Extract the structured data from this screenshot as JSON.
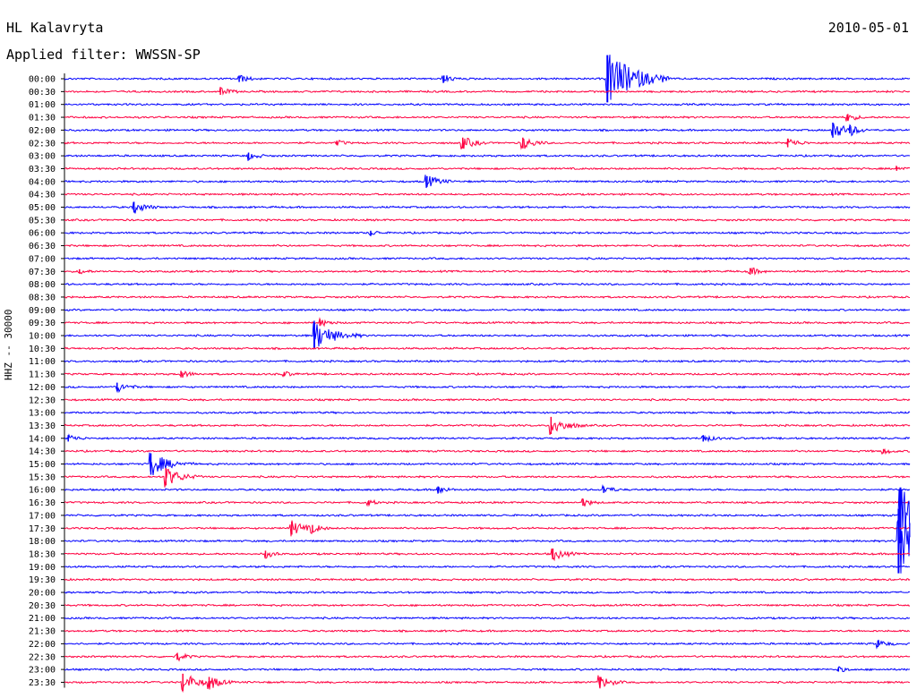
{
  "header": {
    "station": "HL Kalavryta",
    "date": "2010-05-01",
    "filter": "Applied filter: WWSSN-SP",
    "channel": "HHZ -- 30000"
  },
  "colors": {
    "blue": "#0000ff",
    "red": "#ff0040"
  },
  "chart_data": {
    "type": "line",
    "title": "HL Kalavryta",
    "subtitle": "Applied filter: WWSSN-SP",
    "ylabel": "HHZ -- 30000",
    "x_range_minutes": [
      0,
      30
    ],
    "traces": [
      {
        "label": "00:00",
        "color": "blue",
        "events": [
          [
            9.3,
            0.3
          ],
          [
            20.2,
            0.3
          ],
          [
            28.9,
            2.2
          ]
        ]
      },
      {
        "label": "00:30",
        "color": "red",
        "events": [
          [
            8.3,
            0.3
          ]
        ]
      },
      {
        "label": "01:00",
        "color": "blue",
        "events": []
      },
      {
        "label": "01:30",
        "color": "red",
        "events": [
          [
            41.7,
            0.3
          ]
        ]
      },
      {
        "label": "02:00",
        "color": "blue",
        "events": [
          [
            40.9,
            0.7
          ],
          [
            41.8,
            0.3
          ]
        ]
      },
      {
        "label": "02:30",
        "color": "red",
        "events": [
          [
            14.5,
            0.2
          ],
          [
            21.2,
            0.5
          ],
          [
            24.4,
            0.5
          ],
          [
            38.5,
            0.4
          ]
        ]
      },
      {
        "label": "03:00",
        "color": "blue",
        "events": [
          [
            9.8,
            0.3
          ]
        ]
      },
      {
        "label": "03:30",
        "color": "red",
        "events": [
          [
            44.3,
            0.2
          ]
        ]
      },
      {
        "label": "04:00",
        "color": "blue",
        "events": [
          [
            19.3,
            0.5
          ]
        ]
      },
      {
        "label": "04:30",
        "color": "red",
        "events": []
      },
      {
        "label": "05:00",
        "color": "blue",
        "events": [
          [
            3.7,
            0.5
          ]
        ]
      },
      {
        "label": "05:30",
        "color": "red",
        "events": []
      },
      {
        "label": "06:00",
        "color": "blue",
        "events": [
          [
            16.3,
            0.2
          ]
        ]
      },
      {
        "label": "06:30",
        "color": "red",
        "events": []
      },
      {
        "label": "07:00",
        "color": "blue",
        "events": []
      },
      {
        "label": "07:30",
        "color": "red",
        "events": [
          [
            0.8,
            0.2
          ],
          [
            36.5,
            0.3
          ]
        ]
      },
      {
        "label": "08:00",
        "color": "blue",
        "events": []
      },
      {
        "label": "08:30",
        "color": "red",
        "events": []
      },
      {
        "label": "09:00",
        "color": "blue",
        "events": []
      },
      {
        "label": "09:30",
        "color": "red",
        "events": [
          [
            13.6,
            0.3
          ]
        ]
      },
      {
        "label": "10:00",
        "color": "blue",
        "events": [
          [
            13.3,
            1.2
          ]
        ]
      },
      {
        "label": "10:30",
        "color": "red",
        "events": []
      },
      {
        "label": "11:00",
        "color": "blue",
        "events": []
      },
      {
        "label": "11:30",
        "color": "red",
        "events": [
          [
            6.2,
            0.3
          ],
          [
            11.7,
            0.2
          ]
        ]
      },
      {
        "label": "12:00",
        "color": "blue",
        "events": [
          [
            2.8,
            0.4
          ]
        ]
      },
      {
        "label": "12:30",
        "color": "red",
        "events": []
      },
      {
        "label": "13:00",
        "color": "blue",
        "events": []
      },
      {
        "label": "13:30",
        "color": "red",
        "events": [
          [
            25.9,
            0.8
          ]
        ]
      },
      {
        "label": "14:00",
        "color": "blue",
        "events": [
          [
            0.2,
            0.3
          ],
          [
            34.0,
            0.3
          ]
        ]
      },
      {
        "label": "14:30",
        "color": "red",
        "events": [
          [
            43.6,
            0.2
          ]
        ]
      },
      {
        "label": "15:00",
        "color": "blue",
        "events": [
          [
            4.6,
            1.0
          ]
        ]
      },
      {
        "label": "15:30",
        "color": "red",
        "events": [
          [
            5.4,
            0.8
          ]
        ]
      },
      {
        "label": "16:00",
        "color": "blue",
        "events": [
          [
            19.9,
            0.3
          ],
          [
            28.7,
            0.3
          ]
        ]
      },
      {
        "label": "16:30",
        "color": "red",
        "events": [
          [
            16.2,
            0.2
          ],
          [
            27.6,
            0.3
          ]
        ]
      },
      {
        "label": "17:00",
        "color": "blue",
        "events": [
          [
            44.5,
            2.6
          ]
        ]
      },
      {
        "label": "17:30",
        "color": "red",
        "events": [
          [
            12.1,
            0.6
          ],
          [
            13.2,
            0.3
          ]
        ]
      },
      {
        "label": "18:00",
        "color": "blue",
        "events": [
          [
            44.4,
            3.0
          ]
        ]
      },
      {
        "label": "18:30",
        "color": "red",
        "events": [
          [
            10.7,
            0.3
          ],
          [
            26.0,
            0.5
          ]
        ]
      },
      {
        "label": "19:00",
        "color": "blue",
        "events": []
      },
      {
        "label": "19:30",
        "color": "red",
        "events": []
      },
      {
        "label": "20:00",
        "color": "blue",
        "events": []
      },
      {
        "label": "20:30",
        "color": "red",
        "events": []
      },
      {
        "label": "21:00",
        "color": "blue",
        "events": []
      },
      {
        "label": "21:30",
        "color": "red",
        "events": []
      },
      {
        "label": "22:00",
        "color": "blue",
        "events": [
          [
            43.3,
            0.3
          ]
        ]
      },
      {
        "label": "22:30",
        "color": "red",
        "events": [
          [
            6.0,
            0.3
          ]
        ]
      },
      {
        "label": "23:00",
        "color": "blue",
        "events": [
          [
            41.2,
            0.2
          ]
        ]
      },
      {
        "label": "23:30",
        "color": "red",
        "events": [
          [
            6.3,
            0.8
          ],
          [
            7.7,
            0.5
          ],
          [
            28.5,
            0.5
          ]
        ]
      }
    ]
  }
}
